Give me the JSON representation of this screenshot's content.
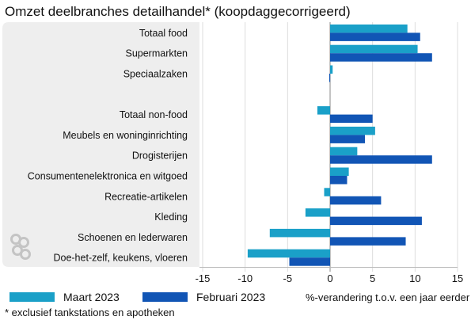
{
  "chart_data": {
    "type": "bar",
    "orientation": "horizontal",
    "title": "Omzet deelbranches detailhandel* (koopdaggecorrigeerd)",
    "xlabel": "%-verandering t.o.v. een jaar eerder",
    "xlim": [
      -15,
      15
    ],
    "xticks": [
      -15,
      -10,
      -5,
      0,
      5,
      10,
      15
    ],
    "grid": true,
    "legend_position": "bottom-left",
    "footnote": "* exclusief tankstations en apotheken",
    "categories": [
      "Totaal food",
      "Supermarkten",
      "Speciaalzaken",
      "",
      "Totaal non-food",
      "Meubels en woninginrichting",
      "Drogisterijen",
      "Consumentenelektronica en witgoed",
      "Recreatie-artikelen",
      "Kleding",
      "Schoenen en lederwaren",
      "Doe-het-zelf, keukens, vloeren"
    ],
    "series": [
      {
        "name": "Maart 2023",
        "color": "#1aa0c8",
        "values": [
          9.1,
          10.3,
          0.3,
          null,
          -1.5,
          5.3,
          3.2,
          2.2,
          -0.7,
          -2.9,
          -7.1,
          -9.7
        ]
      },
      {
        "name": "Februari 2023",
        "color": "#1155b5",
        "values": [
          10.6,
          12.0,
          -0.1,
          null,
          5.0,
          4.1,
          12.0,
          2.0,
          6.0,
          10.8,
          8.9,
          -4.8
        ]
      }
    ]
  },
  "colors": {
    "panel_bg": "#eeeeee",
    "axis": "#888888",
    "grid": "#dddddd",
    "text": "#111111",
    "logo": "#c4c4c4"
  },
  "logo_icon": "cbs-logo-icon"
}
